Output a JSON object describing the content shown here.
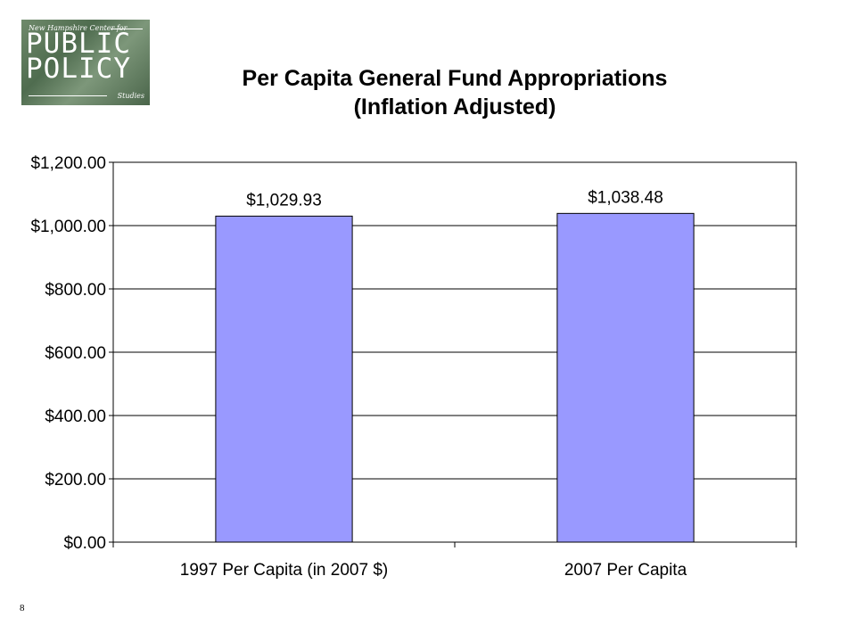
{
  "logo": {
    "top_text": "New Hampshire Center for",
    "line1": "PUBLIC",
    "line2": "POLICY",
    "bottom_text": "Studies"
  },
  "page_number": "8",
  "chart_data": {
    "type": "bar",
    "title_line1": "Per Capita General Fund Appropriations",
    "title_line2": "(Inflation Adjusted)",
    "categories": [
      "1997 Per Capita (in 2007 $)",
      "2007 Per Capita"
    ],
    "values": [
      1029.93,
      1038.48
    ],
    "data_labels": [
      "$1,029.93",
      "$1,038.48"
    ],
    "ylim": [
      0,
      1200
    ],
    "yticks": [
      0,
      200,
      400,
      600,
      800,
      1000,
      1200
    ],
    "ytick_labels": [
      "$0.00",
      "$200.00",
      "$400.00",
      "$600.00",
      "$800.00",
      "$1,000.00",
      "$1,200.00"
    ],
    "grid": true,
    "legend": "none",
    "bar_color": "#9999ff"
  }
}
